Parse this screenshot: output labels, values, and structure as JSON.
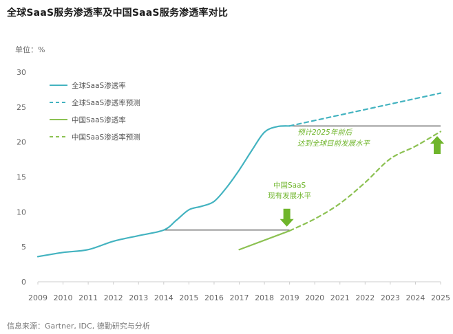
{
  "title": "全球SaaS服务渗透率及中国SaaS服务渗透率对比",
  "unit_label": "单位：%",
  "source": "信息来源：Gartner, IDC, 德勤研究与分析",
  "colors": {
    "global": "#43b3c0",
    "china": "#8cc152",
    "arrow": "#6fb52b",
    "reference": "#555555",
    "axis": "#cccccc"
  },
  "chart_data": {
    "type": "line",
    "title": "全球SaaS服务渗透率及中国SaaS服务渗透率对比",
    "ylabel": "单位：%",
    "xlabel": "",
    "ylim": [
      0,
      30
    ],
    "yticks": [
      "0",
      "5",
      "10",
      "15",
      "20",
      "25",
      "30"
    ],
    "categories": [
      "2009",
      "2010",
      "2011",
      "2012",
      "2013",
      "2014",
      "2015",
      "2016",
      "2017",
      "2018",
      "2019",
      "2020",
      "2021",
      "2022",
      "2023",
      "2024",
      "2025"
    ],
    "grid": false,
    "legend_position": "top-left",
    "series": [
      {
        "name": "全球SaaS渗透率",
        "style": "solid",
        "color_key": "global",
        "points": [
          [
            2009,
            3.6
          ],
          [
            2010,
            4.2
          ],
          [
            2011,
            4.6
          ],
          [
            2012,
            5.8
          ],
          [
            2013,
            6.6
          ],
          [
            2014,
            7.4
          ],
          [
            2014.5,
            8.8
          ],
          [
            2015,
            10.3
          ],
          [
            2015.5,
            10.8
          ],
          [
            2016,
            11.5
          ],
          [
            2016.5,
            13.5
          ],
          [
            2017,
            16.0
          ],
          [
            2017.5,
            18.8
          ],
          [
            2018,
            21.4
          ],
          [
            2018.5,
            22.2
          ],
          [
            2019,
            22.3
          ]
        ]
      },
      {
        "name": "全球SaaS渗透率预测",
        "style": "dashed",
        "color_key": "global",
        "points": [
          [
            2019,
            22.3
          ],
          [
            2025,
            27.0
          ]
        ]
      },
      {
        "name": "中国SaaS渗透率",
        "style": "solid",
        "color_key": "china",
        "points": [
          [
            2017,
            4.6
          ],
          [
            2019,
            7.3
          ]
        ]
      },
      {
        "name": "中国SaaS渗透率预测",
        "style": "dashed",
        "color_key": "china",
        "points": [
          [
            2019,
            7.3
          ],
          [
            2020,
            9.0
          ],
          [
            2021,
            11.2
          ],
          [
            2022,
            14.2
          ],
          [
            2023,
            17.6
          ],
          [
            2024,
            19.4
          ],
          [
            2025,
            21.5
          ]
        ]
      }
    ],
    "reference_lines": [
      {
        "y": 7.4,
        "from": 2014,
        "to": 2019
      },
      {
        "y": 22.3,
        "from": 2019,
        "to": 2025
      }
    ],
    "annotations": [
      {
        "lines": [
          "中国SaaS",
          "现有发展水平"
        ],
        "at": [
          2019,
          7.3
        ],
        "arrow": "down"
      },
      {
        "lines": [
          "预计2025年前后",
          "达到全球目前发展水平"
        ],
        "at": [
          2025,
          22.3
        ],
        "arrow": "up",
        "italic": true
      }
    ]
  }
}
